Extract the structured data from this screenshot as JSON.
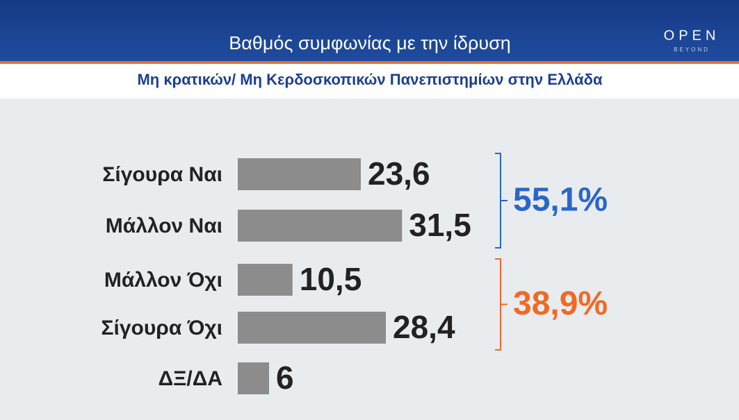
{
  "chart_data": {
    "type": "bar",
    "orientation": "horizontal",
    "title": "Βαθμός συμφωνίας με την ίδρυση",
    "subtitle": "Μη κρατικών/ Μη Κερδοσκοπικών Πανεπιστημίων στην Ελλάδα",
    "logo": {
      "name": "OPEN",
      "tagline": "BEYOND"
    },
    "categories": [
      "Σίγουρα Ναι",
      "Μάλλον Ναι",
      "Μάλλον Όχι",
      "Σίγουρα Όχι",
      "ΔΞ/ΔΑ"
    ],
    "values": [
      23.6,
      31.5,
      10.5,
      28.4,
      6
    ],
    "value_labels": [
      "23,6",
      "31,5",
      "10,5",
      "28,4",
      "6"
    ],
    "color": "#8c8c8c",
    "groups": [
      {
        "value": 55.1,
        "label": "55,1%",
        "color": "#2a66c9",
        "from": 0,
        "to": 1
      },
      {
        "value": 38.9,
        "label": "38,9%",
        "color": "#f06a23",
        "from": 2,
        "to": 3
      }
    ]
  }
}
